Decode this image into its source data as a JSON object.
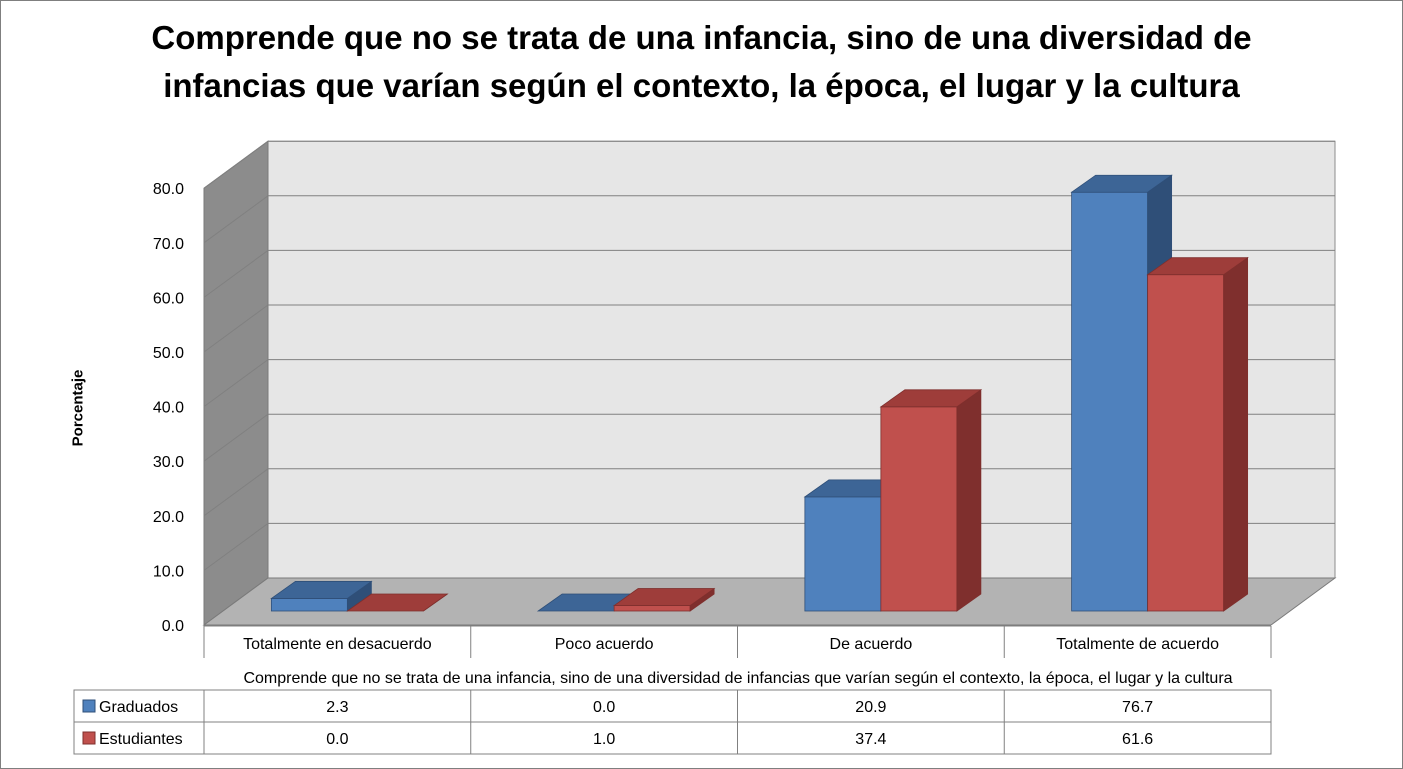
{
  "chart_data": {
    "type": "bar",
    "title_lines": [
      "Comprende que no se trata de una infancia, sino de una diversidad de",
      "infancias que varían según el contexto, la época, el lugar y la cultura"
    ],
    "xlabel": "Comprende que no se trata de una infancia, sino de una diversidad de infancias que varían según el contexto, la época, el lugar y la cultura",
    "ylabel": "Porcentaje",
    "ylim": [
      0,
      80
    ],
    "yticks": [
      "0.0",
      "10.0",
      "20.0",
      "30.0",
      "40.0",
      "50.0",
      "60.0",
      "70.0",
      "80.0"
    ],
    "categories": [
      "Totalmente en desacuerdo",
      "Poco acuerdo",
      "De acuerdo",
      "Totalmente de acuerdo"
    ],
    "series": [
      {
        "name": "Graduados",
        "values": [
          2.3,
          0.0,
          20.9,
          76.7
        ],
        "labels": [
          "2.3",
          "0.0",
          "20.9",
          "76.7"
        ],
        "color": "#4F81BD",
        "top_color": "#3D6596",
        "side_color": "#2F4F78"
      },
      {
        "name": "Estudiantes",
        "values": [
          0.0,
          1.0,
          37.4,
          61.6
        ],
        "labels": [
          "0.0",
          "1.0",
          "37.4",
          "61.6"
        ],
        "color": "#C0504D",
        "top_color": "#9E3D3A",
        "side_color": "#7F2F2D"
      }
    ],
    "style": "3d-clustered-column",
    "grid": true,
    "data_table": true,
    "colors": {
      "back_wall": "#E6E6E6",
      "side_wall": "#8C8C8C",
      "floor": "#B3B3B3",
      "gridline": "#808080"
    }
  }
}
